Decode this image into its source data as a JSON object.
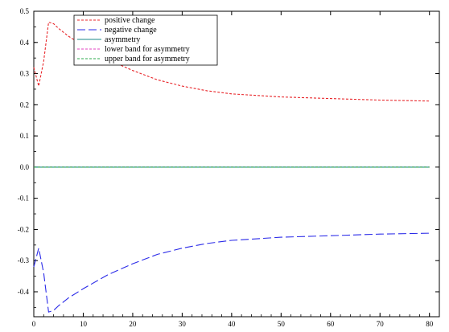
{
  "chart_data": {
    "type": "line",
    "xlim": [
      0,
      82
    ],
    "ylim": [
      -0.48,
      0.5
    ],
    "xticks": [
      0,
      10,
      20,
      30,
      40,
      50,
      60,
      70,
      80
    ],
    "xtick_labels": [
      "0",
      "10",
      "20",
      "30",
      "40",
      "50",
      "60",
      "70",
      "80"
    ],
    "yticks": [
      0.5,
      0.4,
      0.3,
      0.2,
      0.1,
      0.0,
      -0.1,
      -0.2,
      -0.3,
      -0.4
    ],
    "ytick_labels": [
      "0.5",
      "0.4",
      "0.3",
      "0.2",
      "0.1",
      "0.0",
      "-0.1",
      "-0.2",
      "-0.3",
      "-0.4"
    ],
    "grid": false,
    "legend_position": "top-left",
    "series": [
      {
        "name": "positive change",
        "color": "#e8262a",
        "dash": "dotted",
        "x": [
          0,
          1,
          2,
          3,
          4,
          5,
          7,
          10,
          15,
          20,
          25,
          30,
          35,
          40,
          50,
          60,
          70,
          80
        ],
        "y": [
          0.32,
          0.26,
          0.34,
          0.465,
          0.46,
          0.445,
          0.42,
          0.39,
          0.345,
          0.31,
          0.28,
          0.26,
          0.245,
          0.235,
          0.225,
          0.22,
          0.215,
          0.212
        ]
      },
      {
        "name": "negative change",
        "color": "#2a2ae8",
        "dash": "long-dash",
        "x": [
          0,
          1,
          2,
          3,
          4,
          5,
          7,
          10,
          15,
          20,
          25,
          30,
          35,
          40,
          50,
          60,
          70,
          80
        ],
        "y": [
          -0.32,
          -0.26,
          -0.34,
          -0.465,
          -0.46,
          -0.445,
          -0.42,
          -0.39,
          -0.345,
          -0.31,
          -0.28,
          -0.26,
          -0.245,
          -0.235,
          -0.225,
          -0.22,
          -0.215,
          -0.212
        ]
      },
      {
        "name": "asymmetry",
        "color": "#1a8a8a",
        "dash": "solid",
        "x": [
          0,
          80
        ],
        "y": [
          0.0,
          0.0
        ]
      },
      {
        "name": "lower band for asymmetry",
        "color": "#e040c0",
        "dash": "dotted",
        "x": [
          0,
          80
        ],
        "y": [
          0.0,
          0.0
        ]
      },
      {
        "name": "upper band for asymmetry",
        "color": "#2aa84a",
        "dash": "dotted",
        "x": [
          0,
          80
        ],
        "y": [
          0.0,
          0.0
        ]
      }
    ]
  }
}
